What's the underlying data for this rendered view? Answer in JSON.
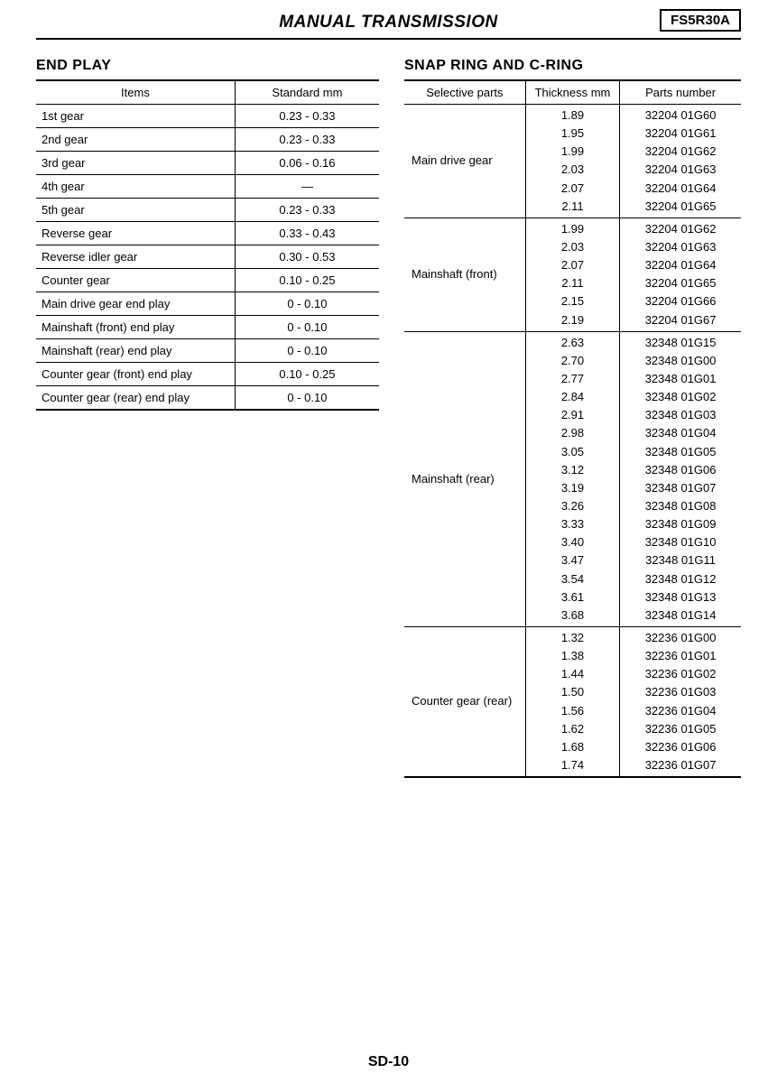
{
  "header": {
    "title": "MANUAL TRANSMISSION",
    "model": "FS5R30A"
  },
  "page_number": "SD-10",
  "endplay": {
    "heading": "END PLAY",
    "col_items": "Items",
    "col_standard": "Standard   mm",
    "rows": [
      {
        "item": "1st gear",
        "val": "0.23 - 0.33"
      },
      {
        "item": "2nd gear",
        "val": "0.23 - 0.33"
      },
      {
        "item": "3rd gear",
        "val": "0.06 - 0.16"
      },
      {
        "item": "4th gear",
        "val": "—"
      },
      {
        "item": "5th gear",
        "val": "0.23 - 0.33"
      },
      {
        "item": "Reverse gear",
        "val": "0.33 - 0.43"
      },
      {
        "item": "Reverse idler gear",
        "val": "0.30 - 0.53"
      },
      {
        "item": "Counter gear",
        "val": "0.10 - 0.25"
      },
      {
        "item": "Main drive gear end play",
        "val": "0 - 0.10"
      },
      {
        "item": "Mainshaft (front) end play",
        "val": "0 - 0.10"
      },
      {
        "item": "Mainshaft (rear) end play",
        "val": "0 - 0.10"
      },
      {
        "item": "Counter gear (front) end play",
        "val": "0.10 - 0.25"
      },
      {
        "item": "Counter gear (rear) end play",
        "val": "0 - 0.10"
      }
    ]
  },
  "snapring": {
    "heading": "SNAP RING AND C-RING",
    "col_parts": "Selective parts",
    "col_thick": "Thickness   mm",
    "col_num": "Parts number",
    "groups": [
      {
        "label": "Main drive gear",
        "rows": [
          {
            "t": "1.89",
            "p": "32204 01G60"
          },
          {
            "t": "1.95",
            "p": "32204 01G61"
          },
          {
            "t": "1.99",
            "p": "32204 01G62"
          },
          {
            "t": "2.03",
            "p": "32204 01G63"
          },
          {
            "t": "2.07",
            "p": "32204 01G64"
          },
          {
            "t": "2.11",
            "p": "32204 01G65"
          }
        ]
      },
      {
        "label": "Mainshaft (front)",
        "rows": [
          {
            "t": "1.99",
            "p": "32204 01G62"
          },
          {
            "t": "2.03",
            "p": "32204 01G63"
          },
          {
            "t": "2.07",
            "p": "32204 01G64"
          },
          {
            "t": "2.11",
            "p": "32204 01G65"
          },
          {
            "t": "2.15",
            "p": "32204 01G66"
          },
          {
            "t": "2.19",
            "p": "32204 01G67"
          }
        ]
      },
      {
        "label": "Mainshaft (rear)",
        "rows": [
          {
            "t": "2.63",
            "p": "32348 01G15"
          },
          {
            "t": "2.70",
            "p": "32348 01G00"
          },
          {
            "t": "2.77",
            "p": "32348 01G01"
          },
          {
            "t": "2.84",
            "p": "32348 01G02"
          },
          {
            "t": "2.91",
            "p": "32348 01G03"
          },
          {
            "t": "2.98",
            "p": "32348 01G04"
          },
          {
            "t": "3.05",
            "p": "32348 01G05"
          },
          {
            "t": "3.12",
            "p": "32348 01G06"
          },
          {
            "t": "3.19",
            "p": "32348 01G07"
          },
          {
            "t": "3.26",
            "p": "32348 01G08"
          },
          {
            "t": "3.33",
            "p": "32348 01G09"
          },
          {
            "t": "3.40",
            "p": "32348 01G10"
          },
          {
            "t": "3.47",
            "p": "32348 01G11"
          },
          {
            "t": "3.54",
            "p": "32348 01G12"
          },
          {
            "t": "3.61",
            "p": "32348 01G13"
          },
          {
            "t": "3.68",
            "p": "32348 01G14"
          }
        ]
      },
      {
        "label": "Counter gear (rear)",
        "rows": [
          {
            "t": "1.32",
            "p": "32236 01G00"
          },
          {
            "t": "1.38",
            "p": "32236 01G01"
          },
          {
            "t": "1.44",
            "p": "32236 01G02"
          },
          {
            "t": "1.50",
            "p": "32236 01G03"
          },
          {
            "t": "1.56",
            "p": "32236 01G04"
          },
          {
            "t": "1.62",
            "p": "32236 01G05"
          },
          {
            "t": "1.68",
            "p": "32236 01G06"
          },
          {
            "t": "1.74",
            "p": "32236 01G07"
          }
        ]
      }
    ]
  }
}
